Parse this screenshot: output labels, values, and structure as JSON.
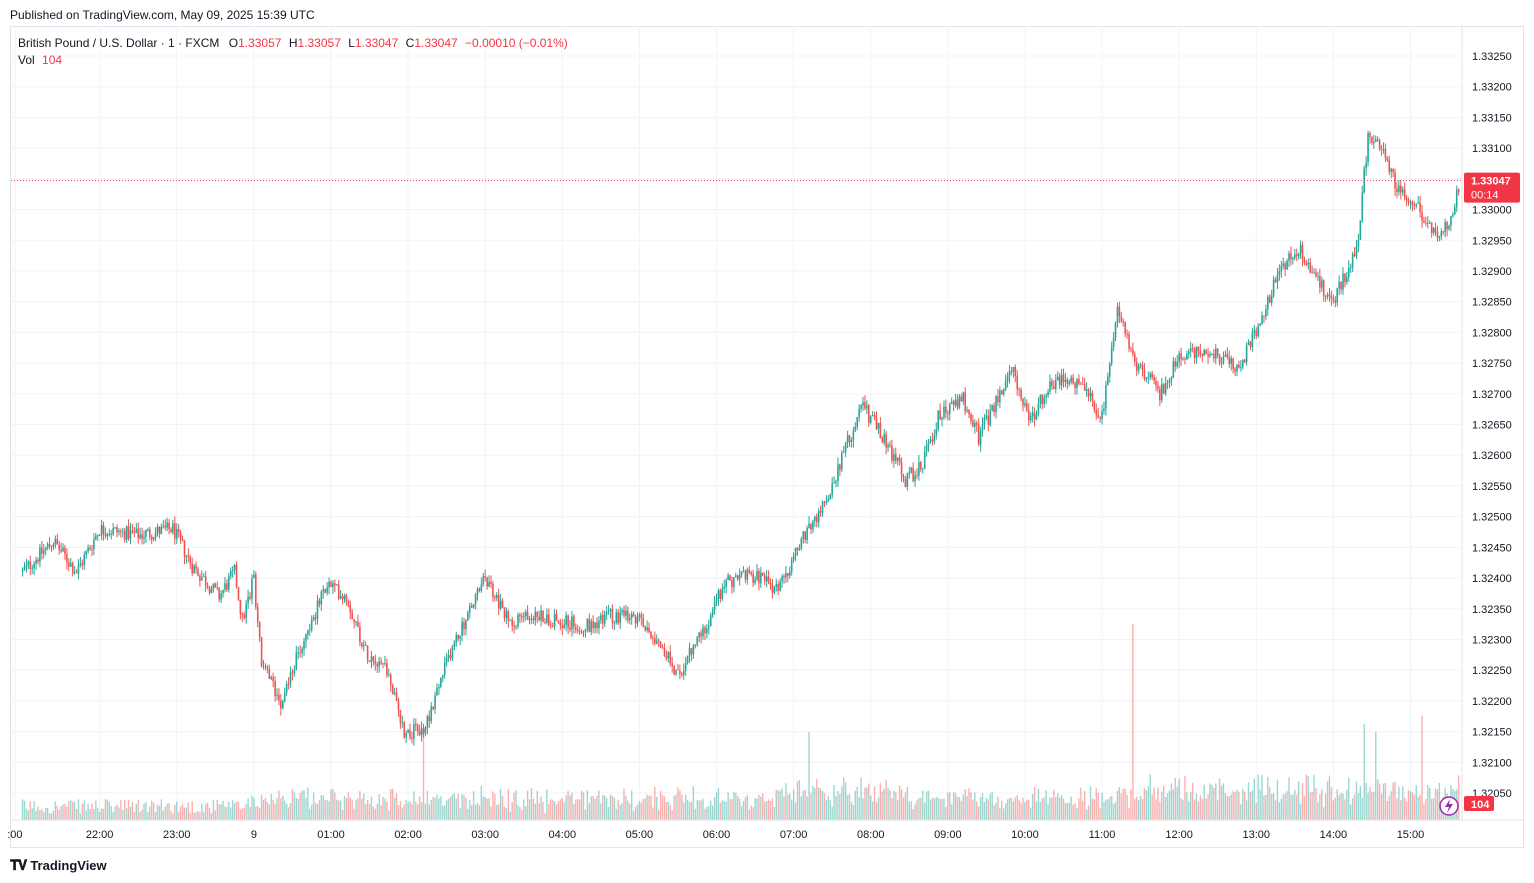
{
  "header": {
    "published": "Published on TradingView.com, May 09, 2025 15:39 UTC"
  },
  "legend": {
    "symbol": "British Pound / U.S. Dollar · 1 · FXCM",
    "o_label": "O",
    "o": "1.33057",
    "h_label": "H",
    "h": "1.33057",
    "l_label": "L",
    "l": "1.33047",
    "c_label": "C",
    "c": "1.33047",
    "change": "−0.00010 (−0.01%)",
    "vol_label": "Vol",
    "vol": "104"
  },
  "price_badge": {
    "price": "1.33047",
    "countdown": "00:14"
  },
  "volume_badge": "104",
  "footer": {
    "brand": "TradingView"
  },
  "colors": {
    "up": "#26a69a",
    "down": "#ef5350",
    "badge": "#f23645",
    "grid": "#f0f3fa"
  },
  "chart_data": {
    "type": "candlestick",
    "interval": "1 minute",
    "ylim": [
      1.3202,
      1.3327
    ],
    "y_ticks": [
      "1.32050",
      "1.32100",
      "1.32150",
      "1.32200",
      "1.32250",
      "1.32300",
      "1.32350",
      "1.32400",
      "1.32450",
      "1.32500",
      "1.32550",
      "1.32600",
      "1.32650",
      "1.32700",
      "1.32750",
      "1.32800",
      "1.32850",
      "1.32900",
      "1.32950",
      "1.33000",
      "1.33050",
      "1.33100",
      "1.33150",
      "1.33200",
      "1.33250"
    ],
    "x_ticks": [
      ":00",
      "22:00",
      "23:00",
      "9",
      "01:00",
      "02:00",
      "03:00",
      "04:00",
      "05:00",
      "06:00",
      "07:00",
      "08:00",
      "09:00",
      "10:00",
      "11:00",
      "12:00",
      "13:00",
      "14:00",
      "15:00"
    ],
    "x_tick_hours": [
      -3.1,
      -2,
      -1,
      0,
      1,
      2,
      3,
      4,
      5,
      6,
      7,
      8,
      9,
      10,
      11,
      12,
      13,
      14,
      15
    ],
    "time_start_hours": -3.0,
    "time_end_hours": 15.65,
    "price_path": [
      [
        -3.0,
        1.3241
      ],
      [
        -2.6,
        1.3246
      ],
      [
        -2.3,
        1.3241
      ],
      [
        -2.0,
        1.3248
      ],
      [
        -1.5,
        1.3247
      ],
      [
        -1.05,
        1.3248
      ],
      [
        -0.8,
        1.3242
      ],
      [
        -0.45,
        1.3237
      ],
      [
        -0.25,
        1.3241
      ],
      [
        -0.15,
        1.3233
      ],
      [
        0.0,
        1.324
      ],
      [
        0.1,
        1.3226
      ],
      [
        0.35,
        1.322
      ],
      [
        0.65,
        1.323
      ],
      [
        0.95,
        1.3239
      ],
      [
        1.2,
        1.3237
      ],
      [
        1.45,
        1.3228
      ],
      [
        1.7,
        1.3226
      ],
      [
        1.95,
        1.3215
      ],
      [
        2.2,
        1.3215
      ],
      [
        2.55,
        1.3228
      ],
      [
        3.0,
        1.324
      ],
      [
        3.3,
        1.3233
      ],
      [
        3.6,
        1.3234
      ],
      [
        4.0,
        1.3233
      ],
      [
        4.3,
        1.3232
      ],
      [
        4.6,
        1.3234
      ],
      [
        5.0,
        1.3233
      ],
      [
        5.25,
        1.323
      ],
      [
        5.5,
        1.3224
      ],
      [
        5.85,
        1.3232
      ],
      [
        6.1,
        1.3239
      ],
      [
        6.4,
        1.3241
      ],
      [
        6.8,
        1.3238
      ],
      [
        7.05,
        1.3245
      ],
      [
        7.4,
        1.3252
      ],
      [
        7.7,
        1.3262
      ],
      [
        7.9,
        1.3268
      ],
      [
        8.2,
        1.3262
      ],
      [
        8.45,
        1.3256
      ],
      [
        8.65,
        1.3258
      ],
      [
        8.9,
        1.3267
      ],
      [
        9.2,
        1.3269
      ],
      [
        9.4,
        1.3263
      ],
      [
        9.6,
        1.3268
      ],
      [
        9.85,
        1.3274
      ],
      [
        10.05,
        1.3265
      ],
      [
        10.25,
        1.327
      ],
      [
        10.5,
        1.3273
      ],
      [
        10.8,
        1.327
      ],
      [
        11.0,
        1.3266
      ],
      [
        11.2,
        1.3283
      ],
      [
        11.45,
        1.3275
      ],
      [
        11.75,
        1.327
      ],
      [
        12.0,
        1.3276
      ],
      [
        12.4,
        1.3277
      ],
      [
        12.75,
        1.3274
      ],
      [
        13.0,
        1.328
      ],
      [
        13.3,
        1.329
      ],
      [
        13.55,
        1.3294
      ],
      [
        13.8,
        1.3288
      ],
      [
        14.0,
        1.3285
      ],
      [
        14.3,
        1.3293
      ],
      [
        14.45,
        1.3312
      ],
      [
        14.6,
        1.3311
      ],
      [
        14.8,
        1.3304
      ],
      [
        15.0,
        1.3302
      ],
      [
        15.2,
        1.3298
      ],
      [
        15.35,
        1.3295
      ],
      [
        15.5,
        1.3298
      ],
      [
        15.65,
        1.33047
      ]
    ],
    "volume_ylim": [
      0,
      250
    ],
    "volume_spikes": [
      [
        11.4,
        245
      ],
      [
        15.15,
        130
      ],
      [
        2.2,
        115
      ],
      [
        14.4,
        120
      ],
      [
        14.55,
        110
      ],
      [
        7.2,
        110
      ]
    ],
    "last_price": 1.33047,
    "last_volume": 104
  }
}
